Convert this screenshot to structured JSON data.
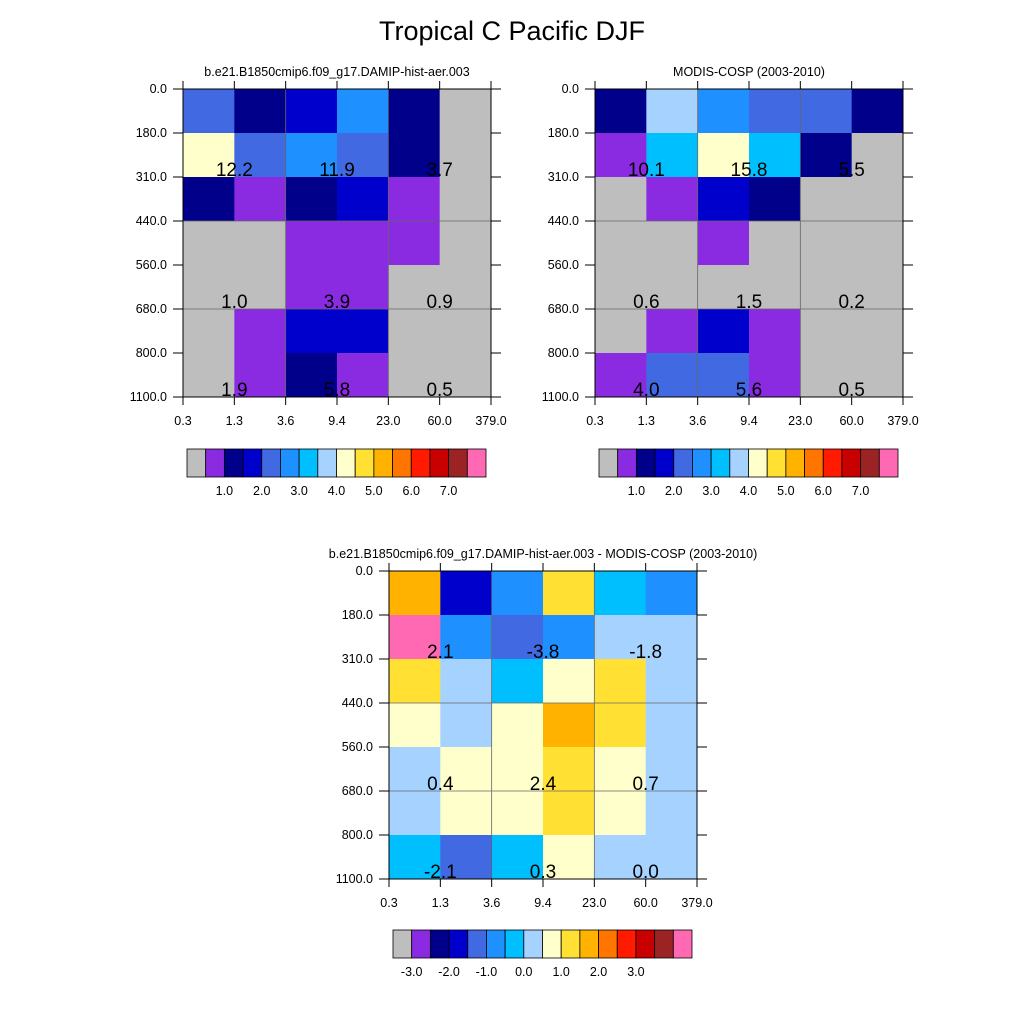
{
  "title": "Tropical C Pacific DJF",
  "colors": {
    "missing": "#bebebe",
    "palette": [
      "#bebebe",
      "#8a2be2",
      "#00008b",
      "#0000cd",
      "#4169e1",
      "#1e90ff",
      "#00bfff",
      "#a6d2ff",
      "#ffffcc",
      "#ffe033",
      "#ffb300",
      "#ff7500",
      "#ff1a00",
      "#c80000",
      "#9b2323",
      "#ff69b4"
    ]
  },
  "chart_data": [
    {
      "type": "heatmap",
      "title": "b.e21.B1850cmip6.f09_g17.DAMIP-hist-aer.003",
      "x_tick_labels": [
        "0.3",
        "1.3",
        "3.6",
        "9.4",
        "23.0",
        "60.0",
        "379.0"
      ],
      "y_tick_labels": [
        "0.0",
        "180.0",
        "310.0",
        "440.0",
        "560.0",
        "680.0",
        "800.0",
        "1100.0"
      ],
      "cells": [
        [
          4,
          2,
          3,
          5,
          2,
          0
        ],
        [
          8,
          4,
          5,
          4,
          2,
          0
        ],
        [
          2,
          1,
          2,
          3,
          1,
          0
        ],
        [
          0,
          0,
          1,
          1,
          1,
          0
        ],
        [
          0,
          0,
          1,
          1,
          0,
          0
        ],
        [
          0,
          1,
          3,
          3,
          0,
          0
        ],
        [
          0,
          1,
          2,
          1,
          0,
          0
        ]
      ],
      "annotations": [
        {
          "row": 1,
          "col": 1,
          "text": "12.2"
        },
        {
          "row": 1,
          "col": 3,
          "text": "11.9"
        },
        {
          "row": 1,
          "col": 5,
          "text": "3.7"
        },
        {
          "row": 4,
          "col": 1,
          "text": "1.0"
        },
        {
          "row": 4,
          "col": 3,
          "text": "3.9"
        },
        {
          "row": 4,
          "col": 5,
          "text": "0.9"
        },
        {
          "row": 6,
          "col": 1,
          "text": "1.9"
        },
        {
          "row": 6,
          "col": 3,
          "text": "5.8"
        },
        {
          "row": 6,
          "col": 5,
          "text": "0.5"
        }
      ],
      "colorbar_labels": [
        "1.0",
        "2.0",
        "3.0",
        "4.0",
        "5.0",
        "6.0",
        "7.0"
      ]
    },
    {
      "type": "heatmap",
      "title": "MODIS-COSP (2003-2010)",
      "x_tick_labels": [
        "0.3",
        "1.3",
        "3.6",
        "9.4",
        "23.0",
        "60.0",
        "379.0"
      ],
      "y_tick_labels": [
        "0.0",
        "180.0",
        "310.0",
        "440.0",
        "560.0",
        "680.0",
        "800.0",
        "1100.0"
      ],
      "cells": [
        [
          2,
          7,
          5,
          4,
          4,
          2
        ],
        [
          1,
          6,
          8,
          6,
          2,
          0
        ],
        [
          0,
          1,
          3,
          2,
          0,
          0
        ],
        [
          0,
          0,
          1,
          0,
          0,
          0
        ],
        [
          0,
          0,
          0,
          0,
          0,
          0
        ],
        [
          0,
          1,
          3,
          1,
          0,
          0
        ],
        [
          1,
          4,
          4,
          1,
          0,
          0
        ]
      ],
      "annotations": [
        {
          "row": 1,
          "col": 1,
          "text": "10.1"
        },
        {
          "row": 1,
          "col": 3,
          "text": "15.8"
        },
        {
          "row": 1,
          "col": 5,
          "text": "5.5"
        },
        {
          "row": 4,
          "col": 1,
          "text": "0.6"
        },
        {
          "row": 4,
          "col": 3,
          "text": "1.5"
        },
        {
          "row": 4,
          "col": 5,
          "text": "0.2"
        },
        {
          "row": 6,
          "col": 1,
          "text": "4.0"
        },
        {
          "row": 6,
          "col": 3,
          "text": "5.6"
        },
        {
          "row": 6,
          "col": 5,
          "text": "0.5"
        }
      ],
      "colorbar_labels": [
        "1.0",
        "2.0",
        "3.0",
        "4.0",
        "5.0",
        "6.0",
        "7.0"
      ]
    },
    {
      "type": "heatmap",
      "title": "b.e21.B1850cmip6.f09_g17.DAMIP-hist-aer.003 - MODIS-COSP (2003-2010)",
      "x_tick_labels": [
        "0.3",
        "1.3",
        "3.6",
        "9.4",
        "23.0",
        "60.0",
        "379.0"
      ],
      "y_tick_labels": [
        "0.0",
        "180.0",
        "310.0",
        "440.0",
        "560.0",
        "680.0",
        "800.0",
        "1100.0"
      ],
      "cells": [
        [
          10,
          3,
          5,
          9,
          6,
          5
        ],
        [
          15,
          5,
          4,
          5,
          7,
          7
        ],
        [
          9,
          7,
          6,
          8,
          9,
          7
        ],
        [
          8,
          7,
          8,
          10,
          9,
          7
        ],
        [
          7,
          8,
          8,
          9,
          8,
          7
        ],
        [
          7,
          8,
          8,
          9,
          8,
          7
        ],
        [
          6,
          4,
          6,
          8,
          7,
          7
        ]
      ],
      "annotations": [
        {
          "row": 1,
          "col": 1,
          "text": "2.1"
        },
        {
          "row": 1,
          "col": 3,
          "text": "-3.8"
        },
        {
          "row": 1,
          "col": 5,
          "text": "-1.8"
        },
        {
          "row": 4,
          "col": 1,
          "text": "0.4"
        },
        {
          "row": 4,
          "col": 3,
          "text": "2.4"
        },
        {
          "row": 4,
          "col": 5,
          "text": "0.7"
        },
        {
          "row": 6,
          "col": 1,
          "text": "-2.1"
        },
        {
          "row": 6,
          "col": 3,
          "text": "0.3"
        },
        {
          "row": 6,
          "col": 5,
          "text": "0.0"
        }
      ],
      "colorbar_labels": [
        "-3.0",
        "-2.0",
        "-1.0",
        "0.0",
        "1.0",
        "2.0",
        "3.0"
      ]
    }
  ]
}
